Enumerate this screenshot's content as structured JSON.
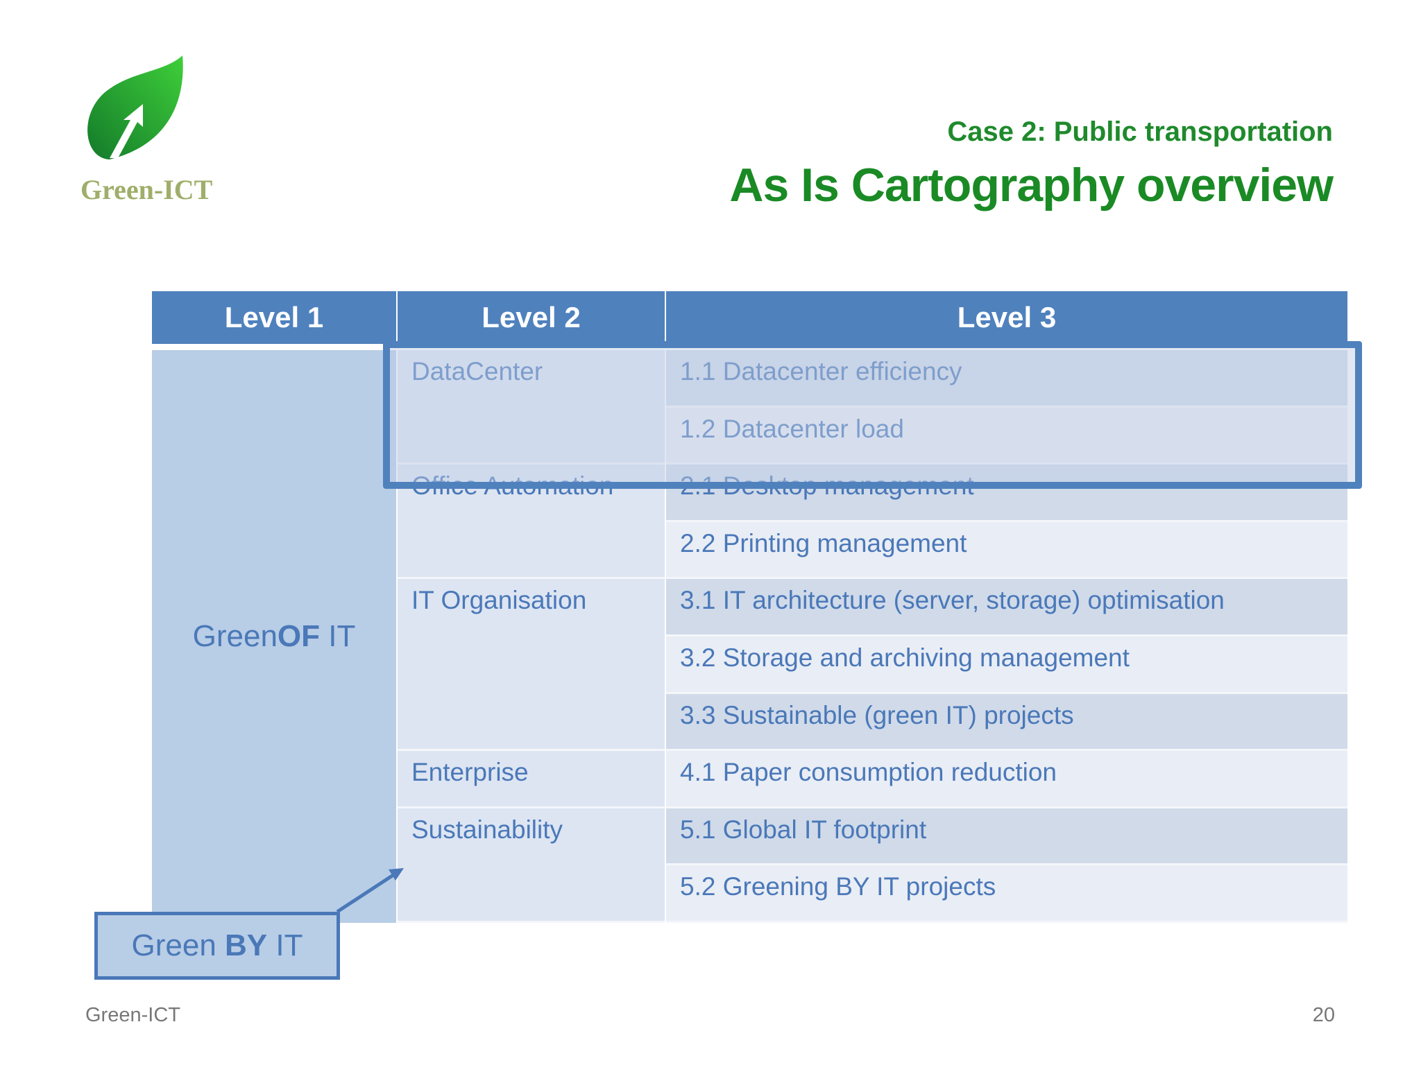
{
  "logo": {
    "text": "Green-ICT",
    "icon": "leaf-arrow-icon",
    "color": "#1e9b2e"
  },
  "header": {
    "subtitle": "Case 2: Public transportation",
    "title": "As Is Cartography overview"
  },
  "table": {
    "headers": [
      "Level 1",
      "Level 2",
      "Level 3"
    ],
    "level1": {
      "prefix": "Green ",
      "bold": "OF",
      "suffix": " IT"
    },
    "groups": [
      {
        "level2": "DataCenter",
        "items": [
          "1.1 Datacenter efficiency",
          "1.2 Datacenter load"
        ]
      },
      {
        "level2": "Office Automation",
        "items": [
          "2.1 Desktop management",
          "2.2 Printing management"
        ]
      },
      {
        "level2": "IT Organisation",
        "items": [
          "3.1 IT architecture (server, storage) optimisation",
          "3.2 Storage and archiving management",
          "3.3 Sustainable (green IT) projects"
        ]
      },
      {
        "level2": "Enterprise",
        "items": [
          "4.1 Paper consumption reduction"
        ]
      },
      {
        "level2": "Sustainability",
        "items": [
          "5.1 Global IT footprint",
          "5.2 Greening BY IT projects"
        ]
      }
    ],
    "highlight_group": "DataCenter"
  },
  "callout": {
    "prefix": "Green ",
    "bold": "BY",
    "suffix": " IT"
  },
  "footer": {
    "left": "Green-ICT",
    "page": "20"
  },
  "colors": {
    "header": "#4f81bd",
    "title": "#1a8a25",
    "text": "#4a78b8"
  }
}
